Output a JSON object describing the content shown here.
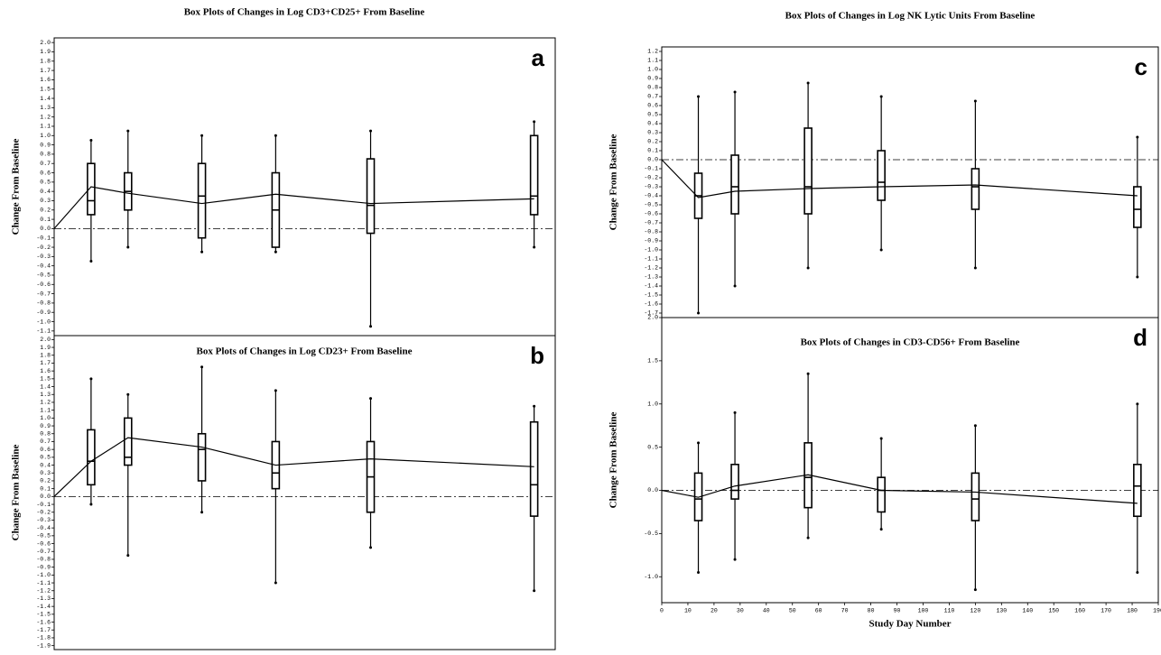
{
  "chart_data": [
    {
      "type": "box",
      "panel": "a",
      "title": "Box Plots of Changes in Log CD3+CD25+ From Baseline",
      "ylabel": "Change From Baseline",
      "xlim": [
        0,
        190
      ],
      "ylim": [
        -1.15,
        2.05
      ],
      "yticks": [
        -1.1,
        {
          "value": -1,
          "label": "-1.0"
        },
        -0.9,
        -0.8,
        -0.7,
        -0.6,
        -0.5,
        -0.4,
        -0.3,
        -0.2,
        -0.1,
        {
          "value": 0,
          "label": "0.0"
        },
        0.1,
        0.2,
        0.3,
        0.4,
        0.5,
        0.6,
        0.7,
        0.8,
        0.9,
        {
          "value": 1,
          "label": "1.0"
        },
        1.1,
        1.2,
        1.3,
        1.4,
        1.5,
        1.6,
        1.7,
        1.8,
        1.9,
        {
          "value": 2,
          "label": "2.0"
        }
      ],
      "reference_line": 0,
      "boxes": [
        {
          "x": 14,
          "whislo": -0.35,
          "q1": 0.15,
          "med": 0.3,
          "q3": 0.7,
          "whishi": 0.95
        },
        {
          "x": 28,
          "whislo": -0.2,
          "q1": 0.2,
          "med": 0.4,
          "q3": 0.6,
          "whishi": 1.05
        },
        {
          "x": 56,
          "whislo": -0.25,
          "q1": -0.1,
          "med": 0.35,
          "q3": 0.7,
          "whishi": 1.0
        },
        {
          "x": 84,
          "whislo": -0.25,
          "q1": -0.2,
          "med": 0.2,
          "q3": 0.6,
          "whishi": 1.0
        },
        {
          "x": 120,
          "whislo": -1.05,
          "q1": -0.05,
          "med": 0.25,
          "q3": 0.75,
          "whishi": 1.05
        },
        {
          "x": 182,
          "whislo": -0.2,
          "q1": 0.15,
          "med": 0.35,
          "q3": 1.0,
          "whishi": 1.15
        }
      ],
      "mean_line": {
        "x": [
          0,
          14,
          28,
          56,
          84,
          120,
          182
        ],
        "values": [
          0,
          0.45,
          0.38,
          0.27,
          0.37,
          0.27,
          0.32
        ]
      }
    },
    {
      "type": "box",
      "panel": "b",
      "title": "Box Plots of Changes in Log CD23+ From Baseline",
      "ylabel": "Change From Baseline",
      "xlim": [
        0,
        190
      ],
      "ylim": [
        -1.95,
        2.05
      ],
      "yticks": [
        -1.9,
        -1.8,
        -1.7,
        -1.6,
        -1.5,
        -1.4,
        -1.3,
        -1.2,
        -1.1,
        {
          "value": -1,
          "label": "-1.0"
        },
        -0.9,
        -0.8,
        -0.7,
        -0.6,
        -0.5,
        -0.4,
        -0.3,
        -0.2,
        -0.1,
        {
          "value": 0,
          "label": "0.0"
        },
        0.1,
        0.2,
        0.3,
        0.4,
        0.5,
        0.6,
        0.7,
        0.8,
        0.9,
        {
          "value": 1,
          "label": "1.0"
        },
        1.1,
        1.2,
        1.3,
        1.4,
        1.5,
        1.6,
        1.7,
        1.8,
        1.9,
        {
          "value": 2,
          "label": "2.0"
        }
      ],
      "reference_line": 0,
      "boxes": [
        {
          "x": 14,
          "whislo": -0.1,
          "q1": 0.15,
          "med": 0.45,
          "q3": 0.85,
          "whishi": 1.5
        },
        {
          "x": 28,
          "whislo": -0.75,
          "q1": 0.4,
          "med": 0.5,
          "q3": 1.0,
          "whishi": 1.3
        },
        {
          "x": 56,
          "whislo": -0.2,
          "q1": 0.2,
          "med": 0.6,
          "q3": 0.8,
          "whishi": 1.65
        },
        {
          "x": 84,
          "whislo": -1.1,
          "q1": 0.1,
          "med": 0.3,
          "q3": 0.7,
          "whishi": 1.35
        },
        {
          "x": 120,
          "whislo": -0.65,
          "q1": -0.2,
          "med": 0.25,
          "q3": 0.7,
          "whishi": 1.25
        },
        {
          "x": 182,
          "whislo": -1.2,
          "q1": -0.25,
          "med": 0.15,
          "q3": 0.95,
          "whishi": 1.15
        }
      ],
      "mean_line": {
        "x": [
          0,
          14,
          28,
          56,
          84,
          120,
          182
        ],
        "values": [
          0,
          0.45,
          0.75,
          0.63,
          0.4,
          0.48,
          0.38
        ]
      }
    },
    {
      "type": "box",
      "panel": "c",
      "title": "Box Plots of Changes in Log NK Lytic Units From Baseline",
      "ylabel": "Change From Baseline",
      "xlim": [
        0,
        190
      ],
      "ylim": [
        -1.75,
        1.25
      ],
      "yticks": [
        -1.7,
        -1.6,
        -1.5,
        -1.4,
        -1.3,
        -1.2,
        -1.1,
        {
          "value": -1,
          "label": "-1.0"
        },
        -0.9,
        -0.8,
        -0.7,
        -0.6,
        -0.5,
        -0.4,
        -0.3,
        -0.2,
        -0.1,
        {
          "value": 0,
          "label": "0.0"
        },
        0.1,
        0.2,
        0.3,
        0.4,
        0.5,
        0.6,
        0.7,
        0.8,
        0.9,
        {
          "value": 1,
          "label": "1.0"
        },
        1.1,
        1.2
      ],
      "reference_line": 0,
      "boxes": [
        {
          "x": 14,
          "whislo": -1.7,
          "q1": -0.65,
          "med": -0.4,
          "q3": -0.15,
          "whishi": 0.7
        },
        {
          "x": 28,
          "whislo": -1.4,
          "q1": -0.6,
          "med": -0.3,
          "q3": 0.05,
          "whishi": 0.75
        },
        {
          "x": 56,
          "whislo": -1.2,
          "q1": -0.6,
          "med": -0.3,
          "q3": 0.35,
          "whishi": 0.85
        },
        {
          "x": 84,
          "whislo": -1.0,
          "q1": -0.45,
          "med": -0.25,
          "q3": 0.1,
          "whishi": 0.7
        },
        {
          "x": 120,
          "whislo": -1.2,
          "q1": -0.55,
          "med": -0.3,
          "q3": -0.1,
          "whishi": 0.65
        },
        {
          "x": 182,
          "whislo": -1.3,
          "q1": -0.75,
          "med": -0.55,
          "q3": -0.3,
          "whishi": 0.25
        }
      ],
      "mean_line": {
        "x": [
          0,
          14,
          28,
          56,
          84,
          120,
          182
        ],
        "values": [
          0,
          -0.42,
          -0.35,
          -0.32,
          -0.3,
          -0.28,
          -0.4
        ]
      }
    },
    {
      "type": "box",
      "panel": "d",
      "title": "Box Plots of Changes in CD3-CD56+ From Baseline",
      "ylabel": "Change From Baseline",
      "xlabel": "Study Day Number",
      "xlim": [
        0,
        190
      ],
      "ylim": [
        -1.3,
        2.0
      ],
      "xticks": [
        0,
        10,
        20,
        30,
        40,
        50,
        60,
        70,
        80,
        90,
        100,
        110,
        120,
        130,
        140,
        150,
        160,
        170,
        180,
        190
      ],
      "yticks": [
        {
          "value": -1,
          "label": "-1.0"
        },
        -0.5,
        {
          "value": 0,
          "label": "0.0"
        },
        0.5,
        {
          "value": 1,
          "label": "1.0"
        },
        1.5,
        {
          "value": 2,
          "label": "2.0"
        }
      ],
      "reference_line": 0,
      "boxes": [
        {
          "x": 14,
          "whislo": -0.95,
          "q1": -0.35,
          "med": -0.1,
          "q3": 0.2,
          "whishi": 0.55
        },
        {
          "x": 28,
          "whislo": -0.8,
          "q1": -0.1,
          "med": 0.0,
          "q3": 0.3,
          "whishi": 0.9
        },
        {
          "x": 56,
          "whislo": -0.55,
          "q1": -0.2,
          "med": 0.15,
          "q3": 0.55,
          "whishi": 1.35
        },
        {
          "x": 84,
          "whislo": -0.45,
          "q1": -0.25,
          "med": 0.0,
          "q3": 0.15,
          "whishi": 0.6
        },
        {
          "x": 120,
          "whislo": -1.15,
          "q1": -0.35,
          "med": -0.1,
          "q3": 0.2,
          "whishi": 0.75
        },
        {
          "x": 182,
          "whislo": -0.95,
          "q1": -0.3,
          "med": 0.05,
          "q3": 0.3,
          "whishi": 1.0
        }
      ],
      "mean_line": {
        "x": [
          0,
          14,
          28,
          56,
          84,
          120,
          182
        ],
        "values": [
          0,
          -0.08,
          0.05,
          0.18,
          0.0,
          -0.02,
          -0.15
        ]
      }
    }
  ]
}
